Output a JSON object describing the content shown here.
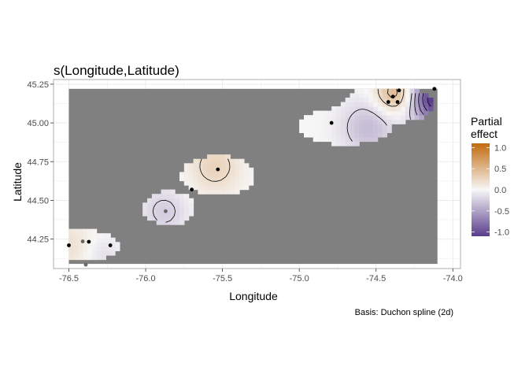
{
  "chart_data": {
    "type": "heatmap",
    "title": "s(Longitude,Latitude)",
    "xlabel": "Longitude",
    "ylabel": "Latitude",
    "caption": "Basis: Duchon spline (2d)",
    "xlim": [
      -76.6,
      -73.95
    ],
    "ylim": [
      44.06,
      45.28
    ],
    "x_ticks": [
      -76.5,
      -76.0,
      -75.5,
      -75.0,
      -74.5,
      -74.0
    ],
    "x_tick_labels": [
      "-76.5",
      "-76.0",
      "-75.5",
      "-75.0",
      "-74.5",
      "-74.0"
    ],
    "y_ticks": [
      44.25,
      44.5,
      44.75,
      45.0,
      45.25
    ],
    "y_tick_labels": [
      "44.25",
      "44.50",
      "44.75",
      "45.00",
      "45.25"
    ],
    "grid": true,
    "legend": {
      "title": [
        "Partial",
        "effect"
      ],
      "position": "right",
      "ticks": [
        1.0,
        0.5,
        0.0,
        -0.5,
        -1.0
      ],
      "tick_labels": [
        "1.0",
        "0.5",
        "0.0",
        "-0.5",
        "-1.0"
      ],
      "range": [
        -1.1,
        1.1
      ],
      "low_color": "#5a3d8c",
      "mid_color": "#f7f7f7",
      "high_color": "#c26b0f"
    },
    "colors": {
      "excluded": "#808080",
      "panel_border": "#999999",
      "grid": "#ebebeb"
    },
    "grid_extent": {
      "lon": [
        -76.5,
        -74.1
      ],
      "lat": [
        44.09,
        45.22
      ]
    },
    "regions": [
      {
        "center": [
          -76.4,
          44.21
        ],
        "radius": [
          0.22,
          0.1
        ]
      },
      {
        "center": [
          -75.85,
          44.45
        ],
        "radius": [
          0.17,
          0.11
        ]
      },
      {
        "center": [
          -75.53,
          44.66
        ],
        "radius": [
          0.24,
          0.13
        ]
      },
      {
        "center": [
          -74.7,
          44.98
        ],
        "radius": [
          0.3,
          0.12
        ]
      },
      {
        "center": [
          -74.42,
          45.12
        ],
        "radius": [
          0.3,
          0.12
        ]
      }
    ],
    "effect_peaks": [
      {
        "lon": -74.38,
        "lat": 45.19,
        "value": 0.55,
        "spread": 0.09
      },
      {
        "lon": -75.55,
        "lat": 44.72,
        "value": 0.28,
        "spread": 0.12
      },
      {
        "lon": -76.5,
        "lat": 44.21,
        "value": 0.18,
        "spread": 0.12
      },
      {
        "lon": -74.1,
        "lat": 45.16,
        "value": -1.2,
        "spread": 0.12
      },
      {
        "lon": -74.55,
        "lat": 44.97,
        "value": -0.35,
        "spread": 0.13
      },
      {
        "lon": -75.88,
        "lat": 44.43,
        "value": -0.25,
        "spread": 0.11
      },
      {
        "lon": -76.28,
        "lat": 44.15,
        "value": -0.15,
        "spread": 0.09
      }
    ],
    "points": [
      {
        "lon": -76.5,
        "lat": 44.21,
        "shade": "dark"
      },
      {
        "lon": -76.41,
        "lat": 44.235,
        "shade": "grey"
      },
      {
        "lon": -76.37,
        "lat": 44.233,
        "shade": "dark"
      },
      {
        "lon": -76.23,
        "lat": 44.21,
        "shade": "dark"
      },
      {
        "lon": -76.39,
        "lat": 44.085,
        "shade": "grey"
      },
      {
        "lon": -75.87,
        "lat": 44.43,
        "shade": "grey"
      },
      {
        "lon": -75.7,
        "lat": 44.57,
        "shade": "dark"
      },
      {
        "lon": -75.53,
        "lat": 44.7,
        "shade": "dark"
      },
      {
        "lon": -74.79,
        "lat": 45.0,
        "shade": "dark"
      },
      {
        "lon": -74.35,
        "lat": 45.21,
        "shade": "dark"
      },
      {
        "lon": -74.39,
        "lat": 45.17,
        "shade": "dark"
      },
      {
        "lon": -74.42,
        "lat": 45.135,
        "shade": "dark"
      },
      {
        "lon": -74.36,
        "lat": 45.135,
        "shade": "dark"
      },
      {
        "lon": -74.12,
        "lat": 45.22,
        "shade": "dark"
      }
    ]
  }
}
